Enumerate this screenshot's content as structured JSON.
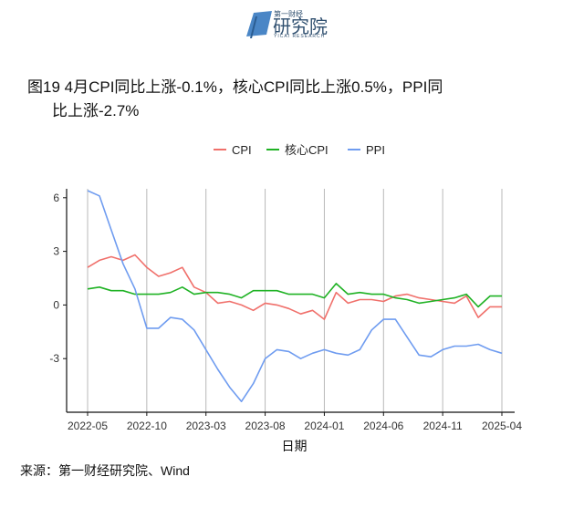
{
  "header": {
    "brand_small": "第一财经",
    "brand_main": "研究院",
    "brand_en": "YICAI RESEARCH"
  },
  "title": {
    "line1": "图19 4月CPI同比上涨-0.1%，核心CPI同比上涨0.5%，PPI同",
    "line2": "比上涨-2.7%"
  },
  "source": "来源：第一财经研究院、Wind",
  "colors": {
    "cpi": "#f0706b",
    "core_cpi": "#1fb224",
    "ppi": "#6f9cf0",
    "grid": "#b8b8b8",
    "axis": "#111111"
  },
  "chart_data": {
    "type": "line",
    "title": "",
    "xlabel": "日期",
    "ylabel": "",
    "ylim": [
      -6.0,
      6.5
    ],
    "yticks": [
      -3,
      0,
      3,
      6
    ],
    "xticks": [
      "2022-05",
      "2022-10",
      "2023-03",
      "2023-08",
      "2024-01",
      "2024-06",
      "2024-11",
      "2025-04"
    ],
    "grid": "vertical at x ticks",
    "legend": "top",
    "x": [
      "2022-05",
      "2022-06",
      "2022-07",
      "2022-08",
      "2022-09",
      "2022-10",
      "2022-11",
      "2022-12",
      "2023-01",
      "2023-02",
      "2023-03",
      "2023-04",
      "2023-05",
      "2023-06",
      "2023-07",
      "2023-08",
      "2023-09",
      "2023-10",
      "2023-11",
      "2023-12",
      "2024-01",
      "2024-02",
      "2024-03",
      "2024-04",
      "2024-05",
      "2024-06",
      "2024-07",
      "2024-08",
      "2024-09",
      "2024-10",
      "2024-11",
      "2024-12",
      "2025-01",
      "2025-02",
      "2025-03",
      "2025-04"
    ],
    "series": [
      {
        "name": "CPI",
        "values": [
          2.1,
          2.5,
          2.7,
          2.5,
          2.8,
          2.1,
          1.6,
          1.8,
          2.1,
          1.0,
          0.7,
          0.1,
          0.2,
          0.0,
          -0.3,
          0.1,
          0.0,
          -0.2,
          -0.5,
          -0.3,
          -0.8,
          0.7,
          0.1,
          0.3,
          0.3,
          0.2,
          0.5,
          0.6,
          0.4,
          0.3,
          0.2,
          0.1,
          0.5,
          -0.7,
          -0.1,
          -0.1
        ]
      },
      {
        "name": "核心CPI",
        "values": [
          0.9,
          1.0,
          0.8,
          0.8,
          0.6,
          0.6,
          0.6,
          0.7,
          1.0,
          0.6,
          0.7,
          0.7,
          0.6,
          0.4,
          0.8,
          0.8,
          0.8,
          0.6,
          0.6,
          0.6,
          0.4,
          1.2,
          0.6,
          0.7,
          0.6,
          0.6,
          0.4,
          0.3,
          0.1,
          0.2,
          0.3,
          0.4,
          0.6,
          -0.1,
          0.5,
          0.5
        ]
      },
      {
        "name": "PPI",
        "values": [
          6.4,
          6.1,
          4.2,
          2.3,
          0.9,
          -1.3,
          -1.3,
          -0.7,
          -0.8,
          -1.4,
          -2.5,
          -3.6,
          -4.6,
          -5.4,
          -4.4,
          -3.0,
          -2.5,
          -2.6,
          -3.0,
          -2.7,
          -2.5,
          -2.7,
          -2.8,
          -2.5,
          -1.4,
          -0.8,
          -0.8,
          -1.8,
          -2.8,
          -2.9,
          -2.5,
          -2.3,
          -2.3,
          -2.2,
          -2.5,
          -2.7
        ]
      }
    ]
  }
}
